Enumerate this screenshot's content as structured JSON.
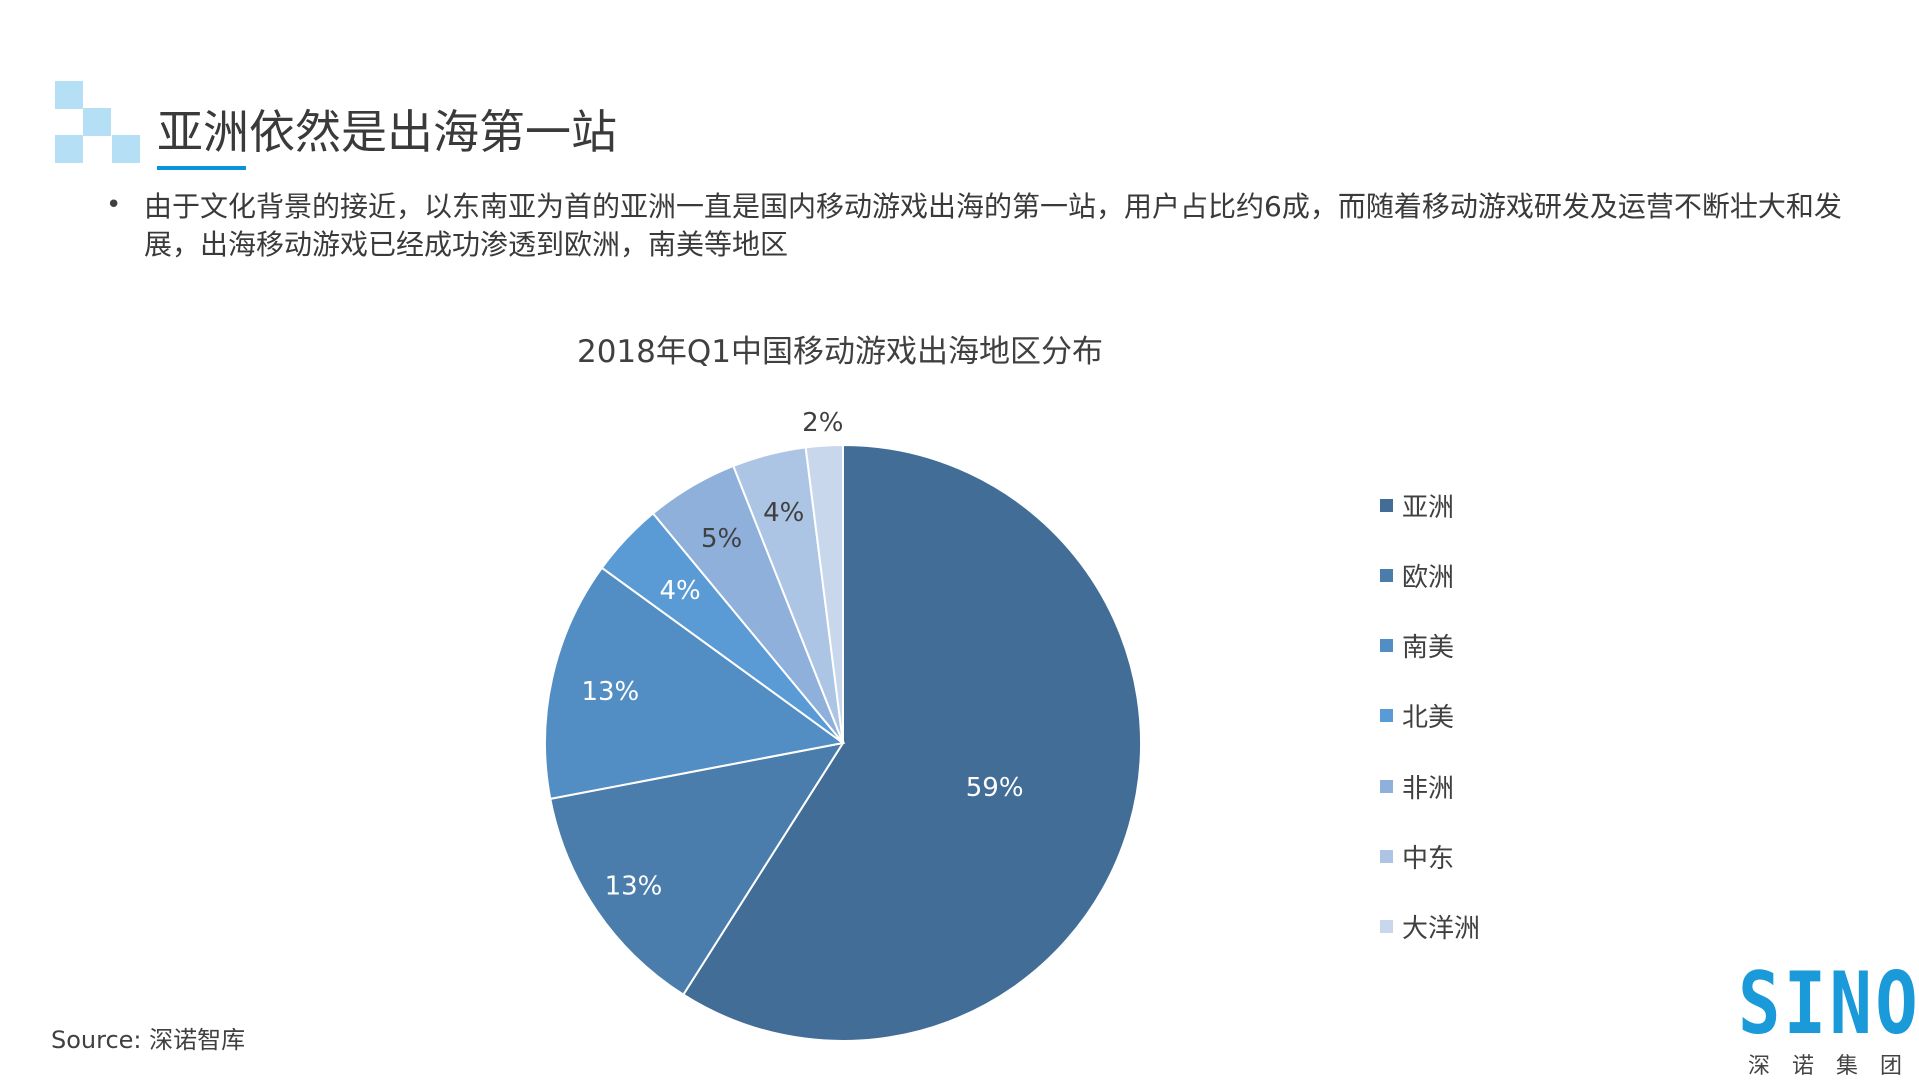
{
  "header": {
    "title": "亚洲依然是出海第一站",
    "bullet": "由于文化背景的接近，以东南亚为首的亚洲一直是国内移动游戏出海的第一站，用户占比约6成，而随着移动游戏研发及运营不断壮大和发展，出海移动游戏已经成功渗透到欧洲，南美等地区",
    "bullet_marker": "•",
    "accent_color": "#0b93d9",
    "decor_color": "#b4dff4"
  },
  "chart_data": {
    "type": "pie",
    "title": "2018年Q1中国移动游戏出海地区分布",
    "categories": [
      "亚洲",
      "欧洲",
      "南美",
      "北美",
      "非洲",
      "中东",
      "大洋洲"
    ],
    "values": [
      59,
      13,
      13,
      4,
      5,
      4,
      2
    ],
    "labels": [
      "59%",
      "13%",
      "13%",
      "4%",
      "5%",
      "4%",
      "2%"
    ],
    "colors": [
      "#416d97",
      "#4a7dab",
      "#528ec4",
      "#5b9bd5",
      "#8eb0db",
      "#adc5e5",
      "#c8d7ec"
    ],
    "start": "top, clockwise",
    "legend_position": "right"
  },
  "footer": {
    "source": "Source: 深诺智库",
    "logo_text": "SINO",
    "logo_subtext": "深诺集团"
  }
}
